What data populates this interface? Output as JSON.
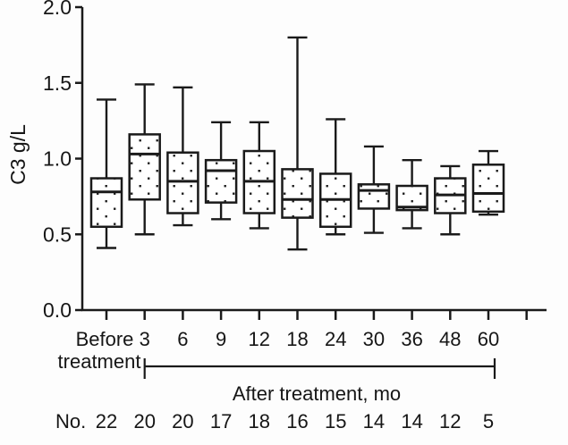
{
  "chart_data": {
    "type": "box",
    "title": "",
    "ylabel": "C3 g/L",
    "xlabel": "",
    "ylim": [
      0.0,
      2.0
    ],
    "yticks": [
      "0.0",
      "0.5",
      "1.0",
      "1.5",
      "2.0"
    ],
    "grid": false,
    "legend": null,
    "categories": [
      "Before treatment",
      "3",
      "6",
      "9",
      "12",
      "18",
      "24",
      "30",
      "36",
      "48",
      "60"
    ],
    "first_category_lines": [
      "Before",
      "treatment"
    ],
    "x_bracket_annotation": "After treatment, mo",
    "x_bracket_span": [
      "3",
      "60"
    ],
    "counts_label": "No.",
    "counts": [
      "22",
      "20",
      "20",
      "17",
      "18",
      "16",
      "15",
      "14",
      "14",
      "12",
      "5"
    ],
    "boxes": [
      {
        "label": "Before treatment",
        "min": 0.41,
        "q1": 0.55,
        "median": 0.78,
        "q3": 0.87,
        "max": 1.39
      },
      {
        "label": "3",
        "min": 0.5,
        "q1": 0.73,
        "median": 1.03,
        "q3": 1.16,
        "max": 1.49
      },
      {
        "label": "6",
        "min": 0.56,
        "q1": 0.64,
        "median": 0.85,
        "q3": 1.04,
        "max": 1.47
      },
      {
        "label": "9",
        "min": 0.6,
        "q1": 0.71,
        "median": 0.92,
        "q3": 0.99,
        "max": 1.24
      },
      {
        "label": "12",
        "min": 0.54,
        "q1": 0.64,
        "median": 0.85,
        "q3": 1.05,
        "max": 1.24
      },
      {
        "label": "18",
        "min": 0.4,
        "q1": 0.61,
        "median": 0.73,
        "q3": 0.93,
        "max": 1.8
      },
      {
        "label": "24",
        "min": 0.5,
        "q1": 0.55,
        "median": 0.73,
        "q3": 0.9,
        "max": 1.26
      },
      {
        "label": "30",
        "min": 0.51,
        "q1": 0.67,
        "median": 0.79,
        "q3": 0.83,
        "max": 1.08
      },
      {
        "label": "36",
        "min": 0.54,
        "q1": 0.66,
        "median": 0.68,
        "q3": 0.82,
        "max": 0.99
      },
      {
        "label": "48",
        "min": 0.5,
        "q1": 0.64,
        "median": 0.76,
        "q3": 0.87,
        "max": 0.95
      },
      {
        "label": "60",
        "min": 0.63,
        "q1": 0.65,
        "median": 0.77,
        "q3": 0.96,
        "max": 1.05
      }
    ],
    "colors": {
      "ink": "#1a1a1a",
      "background": "#ffffff",
      "box_fill": "#ffffff",
      "dot": "#1f1f1f"
    }
  }
}
